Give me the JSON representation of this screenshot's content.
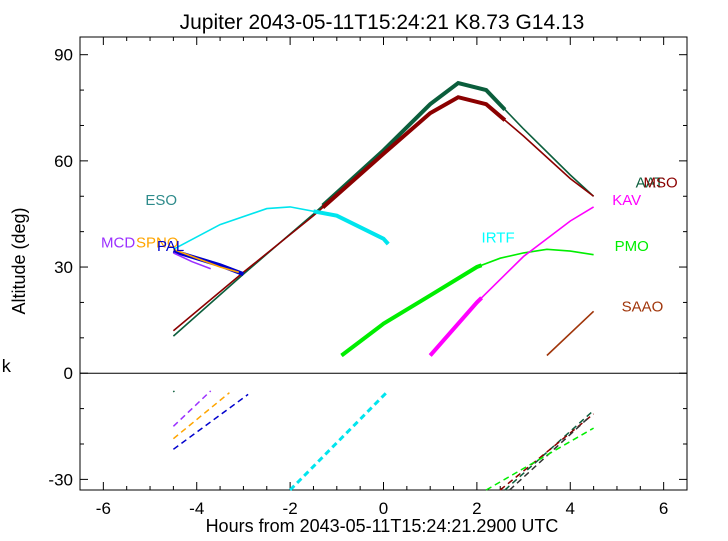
{
  "chart_data": {
    "type": "line",
    "title": "Jupiter 2043-05-11T15:24:21  K8.73  G14.13",
    "xlabel": "Hours from 2043-05-11T15:24:21.2900 UTC",
    "ylabel": "Altitude (deg)",
    "xlim": [
      -6.5,
      6.5
    ],
    "ylim": [
      -33,
      95
    ],
    "xticks": [
      "-6",
      "-4",
      "-2",
      "0",
      "2",
      "4",
      "6"
    ],
    "yticks": [
      "-30",
      "0",
      "30",
      "60",
      "90"
    ],
    "side_mark": "k",
    "series": [
      {
        "name": "AAT",
        "color": "#0b5e3c",
        "points": [
          [
            -4.5,
            10.5
          ],
          [
            -3,
            28
          ],
          [
            -1.5,
            45
          ],
          [
            0,
            63
          ],
          [
            1,
            76
          ],
          [
            1.6,
            82
          ],
          [
            2.2,
            80
          ],
          [
            3,
            69
          ],
          [
            4,
            56
          ],
          [
            4.5,
            50
          ]
        ],
        "thick_range": [
          -1.3,
          2.6
        ]
      },
      {
        "name": "MSO",
        "color": "#8b0000",
        "points": [
          [
            -4.5,
            12
          ],
          [
            -3,
            28.5
          ],
          [
            -1.5,
            44.5
          ],
          [
            0,
            62
          ],
          [
            1,
            73.5
          ],
          [
            1.6,
            78
          ],
          [
            2.2,
            76
          ],
          [
            3,
            67
          ],
          [
            4,
            55
          ],
          [
            4.5,
            50
          ]
        ],
        "thick_range": [
          -1.3,
          2.6
        ]
      },
      {
        "name": "ESO",
        "color": "#00e5ee",
        "points": [
          [
            -4.5,
            35
          ],
          [
            -3.5,
            42
          ],
          [
            -2.5,
            46.5
          ],
          [
            -2,
            47
          ],
          [
            -1,
            44.5
          ],
          [
            0,
            38
          ],
          [
            0.1,
            36.5
          ]
        ],
        "thick_range": [
          -1.5,
          0.1
        ]
      },
      {
        "name": "PAL",
        "color": "#0000cd",
        "points": [
          [
            -4.5,
            34.5
          ],
          [
            -4,
            32.5
          ],
          [
            -3.5,
            30.5
          ],
          [
            -3,
            28
          ]
        ],
        "thick_range": [
          -4.5,
          -3
        ]
      },
      {
        "name": "MCD",
        "color": "#9b30ff",
        "points": [
          [
            -4.5,
            34
          ],
          [
            -4.1,
            31.5
          ],
          [
            -3.7,
            29.5
          ]
        ],
        "thick_range": [
          -4.5,
          -4.5
        ]
      },
      {
        "name": "SPNO",
        "color": "#ffa500",
        "points": [
          [
            -4.5,
            35
          ],
          [
            -4,
            32.5
          ],
          [
            -3.5,
            30
          ],
          [
            -3.1,
            28.5
          ]
        ],
        "thick_range": [
          -4.5,
          -4.5
        ]
      },
      {
        "name": "IRTF",
        "color": "#00ffff",
        "points": [],
        "thick_range": [
          0,
          0
        ]
      },
      {
        "name": "PMO",
        "color": "#00ee00",
        "points": [
          [
            -0.9,
            5
          ],
          [
            0,
            14
          ],
          [
            1,
            22
          ],
          [
            2,
            30
          ],
          [
            2.5,
            32.5
          ],
          [
            3,
            34
          ],
          [
            3.5,
            35
          ],
          [
            4,
            34.5
          ],
          [
            4.5,
            33.5
          ]
        ],
        "thick_range": [
          -0.9,
          2.1
        ]
      },
      {
        "name": "KAV",
        "color": "#ff00ff",
        "points": [
          [
            1,
            5
          ],
          [
            2,
            20
          ],
          [
            3,
            33
          ],
          [
            4,
            43
          ],
          [
            4.5,
            47
          ]
        ],
        "thick_range": [
          1,
          2.1
        ]
      },
      {
        "name": "SAAO",
        "color": "#a0350a",
        "points": [
          [
            3.5,
            5
          ],
          [
            4.5,
            17.5
          ]
        ],
        "thick_range": [
          3.5,
          3.5
        ]
      }
    ],
    "lower_series": [
      {
        "name": "AAT",
        "color": "#0b5e3c",
        "points": [
          [
            -4.5,
            -5
          ],
          [
            -4.48,
            -5.3
          ]
        ]
      },
      {
        "name": "MCD",
        "color": "#9b30ff",
        "points": [
          [
            -4.5,
            -15
          ],
          [
            -3.7,
            -5
          ]
        ]
      },
      {
        "name": "SPNO",
        "color": "#ffa500",
        "points": [
          [
            -4.5,
            -18.5
          ],
          [
            -3.3,
            -5.5
          ]
        ]
      },
      {
        "name": "PAL",
        "color": "#0000cd",
        "points": [
          [
            -4.5,
            -21.5
          ],
          [
            -2.9,
            -6
          ]
        ]
      },
      {
        "name": "ESO",
        "color": "#00e5ee",
        "points": [
          [
            -2.0,
            -33
          ],
          [
            0.1,
            -5
          ]
        ]
      },
      {
        "name": "AAT_b",
        "color": "#0b5e3c",
        "points": [
          [
            2.6,
            -33
          ],
          [
            4.5,
            -10.5
          ]
        ]
      },
      {
        "name": "MSO_b",
        "color": "#8b0000",
        "points": [
          [
            2.5,
            -33
          ],
          [
            4.5,
            -11.5
          ]
        ]
      },
      {
        "name": "KAV_b",
        "color": "#333333",
        "points": [
          [
            2.7,
            -33
          ],
          [
            4.4,
            -12.5
          ]
        ]
      },
      {
        "name": "PMO_b",
        "color": "#00ee00",
        "points": [
          [
            2.2,
            -33
          ],
          [
            4.5,
            -15.5
          ]
        ]
      }
    ],
    "labels": [
      {
        "id": "AAT",
        "text": "AAT",
        "color": "#0b5e3c",
        "x": 5.4,
        "y": 52.5
      },
      {
        "id": "MSO",
        "text": "MSO",
        "color": "#8b0000",
        "x": 6.3,
        "y": 52.5
      },
      {
        "id": "ESO",
        "text": "ESO",
        "color": "#2e8b8b",
        "x": -5.1,
        "y": 47.5
      },
      {
        "id": "MCD",
        "text": "MCD",
        "color": "#9b30ff",
        "x": -6.05,
        "y": 35.5
      },
      {
        "id": "SPNO",
        "text": "SPNO",
        "color": "#ffa500",
        "x": -5.3,
        "y": 35.5
      },
      {
        "id": "PAL",
        "text": "PAL",
        "color": "#0000cd",
        "x": -4.85,
        "y": 34.5
      },
      {
        "id": "IRTF",
        "text": "IRTF",
        "color": "#00ffff",
        "x": 2.1,
        "y": 37
      },
      {
        "id": "KAV",
        "text": "KAV",
        "color": "#ff00ff",
        "x": 4.9,
        "y": 47.5
      },
      {
        "id": "PMO",
        "text": "PMO",
        "color": "#00ee00",
        "x": 4.95,
        "y": 34.5
      },
      {
        "id": "SAAO",
        "text": "SAAO",
        "color": "#a0350a",
        "x": 5.1,
        "y": 17.5
      }
    ],
    "divider_y": 0,
    "grid": false,
    "legend": "inline"
  }
}
